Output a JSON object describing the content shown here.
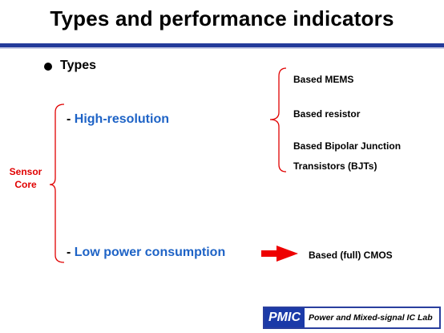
{
  "slide": {
    "title": "Types and performance indicators",
    "section": "Types",
    "sensor_core": [
      "Sensor",
      "Core"
    ],
    "high_resolution": {
      "dash": "- ",
      "label": "High-resolution"
    },
    "high_resolution_types": [
      "Based MEMS",
      "Based resistor",
      "Based Bipolar Junction",
      "Transistors (BJTs)"
    ],
    "low_power": {
      "dash": "- ",
      "label": "Low power consumption"
    },
    "low_power_type": "Based (full) CMOS"
  },
  "footer": {
    "logo": "PMIC",
    "lab_name": "Power and Mixed-signal IC Lab"
  },
  "colors": {
    "accent_blue": "#1e63c6",
    "label_red": "#e00000",
    "arrow_red": "#ee0000",
    "rule_navy": "#233b9a"
  }
}
